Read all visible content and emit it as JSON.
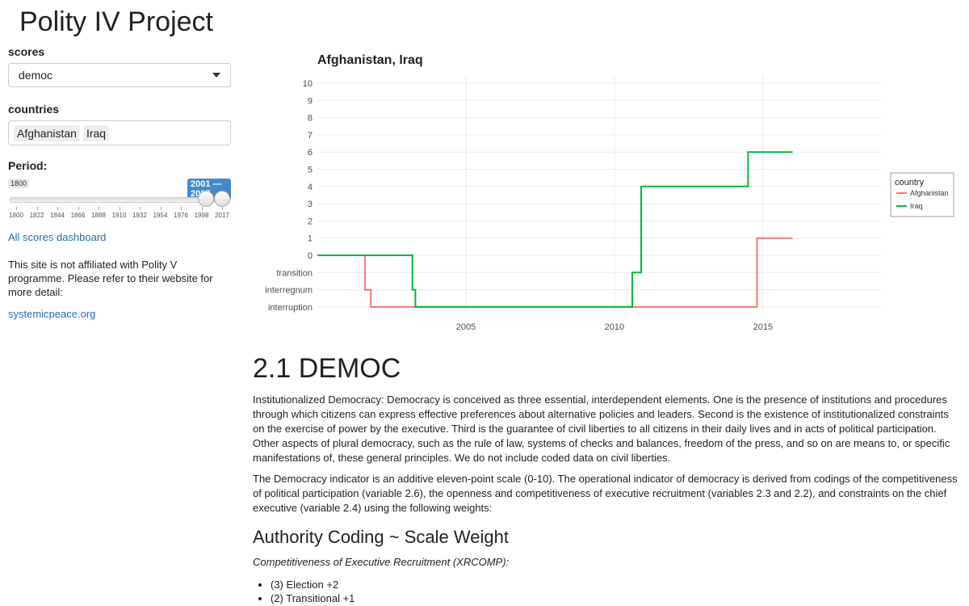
{
  "app": {
    "title": "Polity IV Project"
  },
  "sidebar": {
    "scores_label": "scores",
    "scores_value": "democ",
    "countries_label": "countries",
    "countries": [
      "Afghanistan",
      "Iraq"
    ],
    "period_label": "Period:",
    "period_min_label": "1800",
    "period_range_label": "2001 — 2017",
    "period_ticks": [
      "1800",
      "1822",
      "1844",
      "1866",
      "1888",
      "1910",
      "1932",
      "1954",
      "1976",
      "1998",
      "2017"
    ],
    "dashboard_link": "All scores dashboard",
    "note": "This site is not affiliated with Polity V programme. Please refer to their website for more detail:",
    "site_link": "systemicpeace.org"
  },
  "chart_data": {
    "type": "line",
    "title": "Afghanistan, Iraq",
    "xlabel": "",
    "ylabel": "",
    "xlim": [
      2000,
      2019
    ],
    "x_ticks": [
      "2005",
      "2010",
      "2015"
    ],
    "y_ticks": [
      "interruption",
      "interregnum",
      "transition",
      "0",
      "1",
      "2",
      "3",
      "4",
      "5",
      "6",
      "7",
      "8",
      "9",
      "10"
    ],
    "grid": true,
    "legend_title": "country",
    "legend_position": "right",
    "series": [
      {
        "name": "Afghanistan",
        "color": "#F8766D",
        "points": [
          [
            2000,
            "0"
          ],
          [
            2001.6,
            "0"
          ],
          [
            2001.6,
            "interregnum"
          ],
          [
            2001.8,
            "interregnum"
          ],
          [
            2001.8,
            "interruption"
          ],
          [
            2014.8,
            "interruption"
          ],
          [
            2014.8,
            "1"
          ],
          [
            2016,
            "1"
          ]
        ]
      },
      {
        "name": "Iraq",
        "color": "#00BA38",
        "points": [
          [
            2000,
            "0"
          ],
          [
            2003.2,
            "0"
          ],
          [
            2003.2,
            "interregnum"
          ],
          [
            2003.3,
            "interregnum"
          ],
          [
            2003.3,
            "interruption"
          ],
          [
            2010.6,
            "interruption"
          ],
          [
            2010.6,
            "transition"
          ],
          [
            2010.9,
            "transition"
          ],
          [
            2010.9,
            "4"
          ],
          [
            2014.5,
            "4"
          ],
          [
            2014.5,
            "6"
          ],
          [
            2016,
            "6"
          ]
        ]
      }
    ]
  },
  "main": {
    "section_title": "2.1 DEMOC",
    "para1": "Institutionalized Democracy: Democracy is conceived as three essential, interdependent elements. One is the presence of institutions and procedures through which citizens can express effective preferences about alternative policies and leaders. Second is the existence of institutionalized constraints on the exercise of power by the executive. Third is the guarantee of civil liberties to all citizens in their daily lives and in acts of political participation. Other aspects of plural democracy, such as the rule of law, systems of checks and balances, freedom of the press, and so on are means to, or specific manifestations of, these general principles. We do not include coded data on civil liberties.",
    "para2": "The Democracy indicator is an additive eleven-point scale (0-10). The operational indicator of democracy is derived from codings of the competitiveness of political participation (variable 2.6), the openness and competitiveness of executive recruitment (variables 2.3 and 2.2), and constraints on the chief executive (variable 2.4) using the following weights:",
    "subsection_title": "Authority Coding ~ Scale Weight",
    "xrcomp_label": "Competitiveness of Executive Recruitment (XRCOMP):",
    "xrcomp_items": [
      "(3) Election +2",
      "(2) Transitional +1"
    ]
  }
}
